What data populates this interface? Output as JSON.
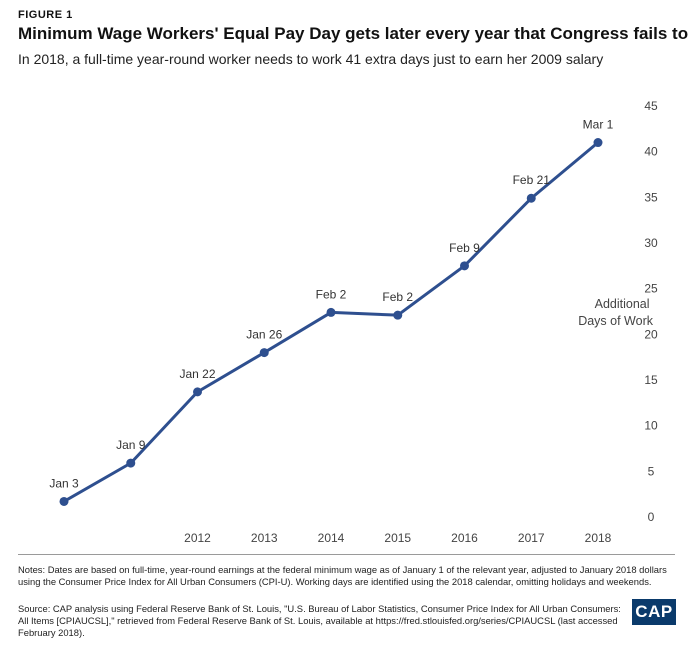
{
  "figure_label": "FIGURE 1",
  "title": "Minimum Wage Workers' Equal Pay Day gets later every year that Congress fails to act",
  "subtitle": "In 2018, a full-time year-round worker needs to work 41 extra days just to earn her 2009 salary",
  "notes": "Notes: Dates are based on full-time, year-round earnings at the federal minimum wage as of January 1 of the relevant year, adjusted to January 2018 dollars using the Consumer Price Index for All Urban Consumers (CPI-U). Working days are identified using the 2018 calendar, omitting holidays and weekends.",
  "source": "Source: CAP analysis using Federal Reserve Bank of St. Louis, \"U.S. Bureau of Labor Statistics, Consumer Price Index for All Urban Consumers: All Items [CPIAUCSL],\" retrieved from Federal Reserve Bank of St. Louis, available at https://fred.stlouisfed.org/series/CPIAUCSL (last accessed February 2018).",
  "logo_text": "CAP",
  "chart_data": {
    "type": "line",
    "x": [
      "2010",
      "2011",
      "2012",
      "2013",
      "2014",
      "2015",
      "2016",
      "2017",
      "2018"
    ],
    "x_tick_labels": [
      "",
      "",
      "2012",
      "2013",
      "2014",
      "2015",
      "2016",
      "2017",
      "2018"
    ],
    "values": [
      1.7,
      5.9,
      13.7,
      18,
      22.4,
      22.1,
      27.5,
      34.9,
      41
    ],
    "point_labels": [
      "Jan 3",
      "Jan 9",
      "Jan 22",
      "Jan 26",
      "Feb 2",
      "Feb 2",
      "Feb 9",
      "Feb 21",
      "Mar 1"
    ],
    "ylim": [
      0,
      45
    ],
    "y_ticks": [
      0,
      5,
      10,
      15,
      20,
      25,
      30,
      35,
      40,
      45
    ],
    "ylabel_lines": [
      "Additional",
      "Days of Work"
    ],
    "y_axis_side": "right",
    "grid": false,
    "line_color": "#2e4f8f"
  }
}
